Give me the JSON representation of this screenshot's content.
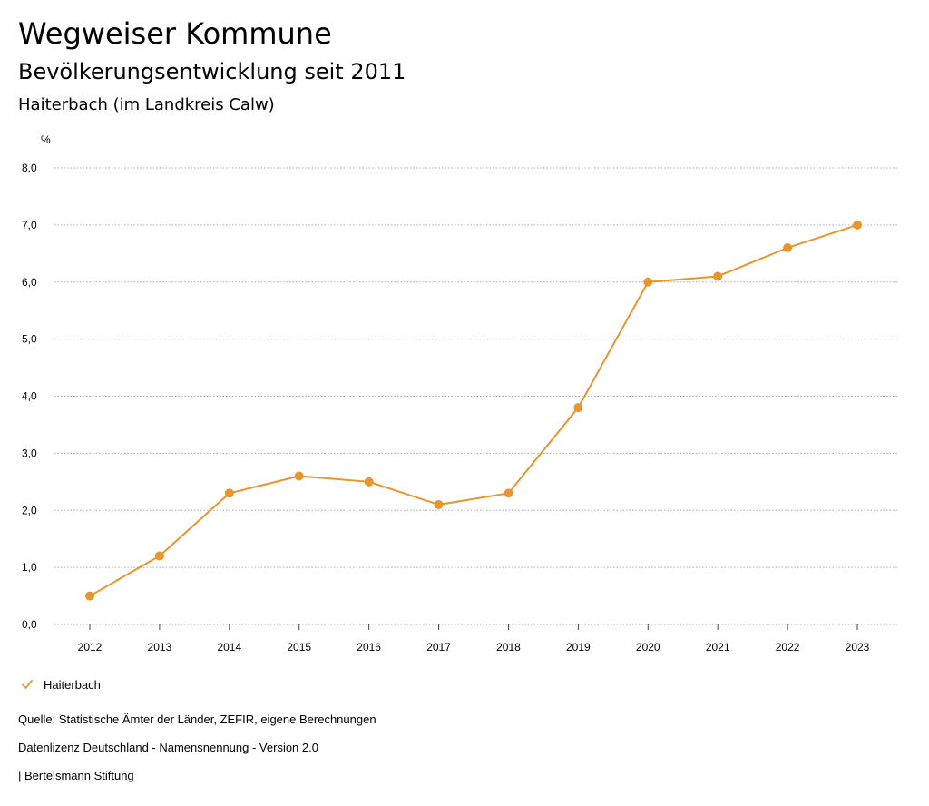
{
  "header": {
    "title": "Wegweiser Kommune",
    "subtitle": "Bevölkerungsentwicklung seit 2011",
    "region": "Haiterbach (im Landkreis Calw)"
  },
  "colors": {
    "series": "#E8952F",
    "grid": "#aaaaaa",
    "axis": "#444444"
  },
  "legend": {
    "label": "Haiterbach",
    "icon": "check-icon"
  },
  "footer": {
    "source": "Quelle: Statistische Ämter der Länder, ZEFIR, eigene Berechnungen",
    "license": "Datenlizenz Deutschland - Namensnennung - Version 2.0",
    "publisher": "| Bertelsmann Stiftung"
  },
  "chart_data": {
    "type": "line",
    "title": "Bevölkerungsentwicklung seit 2011",
    "ylabel": "%",
    "xlabel": "",
    "ylim": [
      0,
      8
    ],
    "yticks": [
      "0,0",
      "1,0",
      "2,0",
      "3,0",
      "4,0",
      "5,0",
      "6,0",
      "7,0",
      "8,0"
    ],
    "categories": [
      "2012",
      "2013",
      "2014",
      "2015",
      "2016",
      "2017",
      "2018",
      "2019",
      "2020",
      "2021",
      "2022",
      "2023"
    ],
    "series": [
      {
        "name": "Haiterbach",
        "values": [
          0.5,
          1.2,
          2.3,
          2.6,
          2.5,
          2.1,
          2.3,
          3.8,
          6.0,
          6.1,
          6.6,
          7.0
        ]
      }
    ],
    "grid": true,
    "legend_position": "bottom-left"
  }
}
